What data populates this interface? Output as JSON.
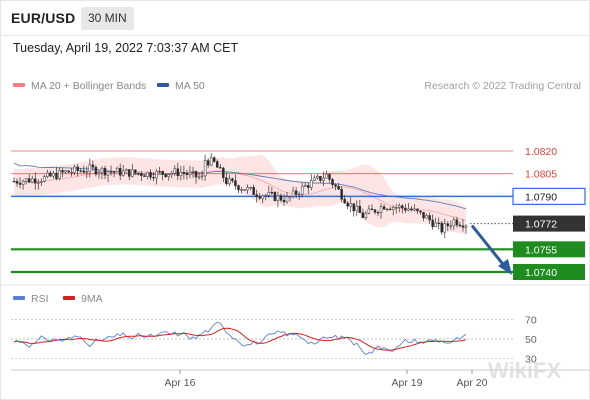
{
  "header": {
    "symbol": "EUR/USD",
    "timeframe": "30 MIN",
    "datetime": "Tuesday, April 19, 2022 7:03:37 AM CET"
  },
  "legend": {
    "items": [
      {
        "label": "MA 20 + Bollinger Bands",
        "color": "#f08080"
      },
      {
        "label": "MA 50",
        "color": "#2e5b9e"
      }
    ],
    "copyright": "Research © 2022 Trading Central"
  },
  "rsi_legend": {
    "items": [
      {
        "label": "RSI",
        "color": "#5b7fd6"
      },
      {
        "label": "9MA",
        "color": "#d62020"
      }
    ]
  },
  "watermark": "WikiFX",
  "colors": {
    "resistance": "#e0403a",
    "pivot": "#2f6fe0",
    "support": "#1e8c1e",
    "last_price": "#333333",
    "arrow": "#2e5b9e",
    "candle_up": "#ffffff",
    "candle_down": "#2b2b2b",
    "band_fill": "#fde1e1"
  },
  "chart_data": [
    {
      "type": "candlestick",
      "title": "EUR/USD",
      "x_ticks": [
        "Apr 16",
        "Apr 19",
        "Apr 20"
      ],
      "price_levels": [
        {
          "label": "1.0820",
          "value": 1.082,
          "kind": "resistance"
        },
        {
          "label": "1.0805",
          "value": 1.0805,
          "kind": "resistance"
        },
        {
          "label": "1.0790",
          "value": 1.079,
          "kind": "pivot"
        },
        {
          "label": "1.0772",
          "value": 1.0772,
          "kind": "last"
        },
        {
          "label": "1.0755",
          "value": 1.0755,
          "kind": "support"
        },
        {
          "label": "1.0740",
          "value": 1.074,
          "kind": "support"
        }
      ],
      "ylim": [
        1.0735,
        1.0835
      ],
      "forecast": {
        "from": 1.0772,
        "to": 1.074,
        "direction": "down"
      }
    },
    {
      "type": "line",
      "title": "RSI",
      "series": [
        {
          "name": "RSI"
        },
        {
          "name": "9MA"
        }
      ],
      "y_ticks": [
        "70",
        "50",
        "30"
      ],
      "ylim": [
        20,
        80
      ]
    }
  ]
}
